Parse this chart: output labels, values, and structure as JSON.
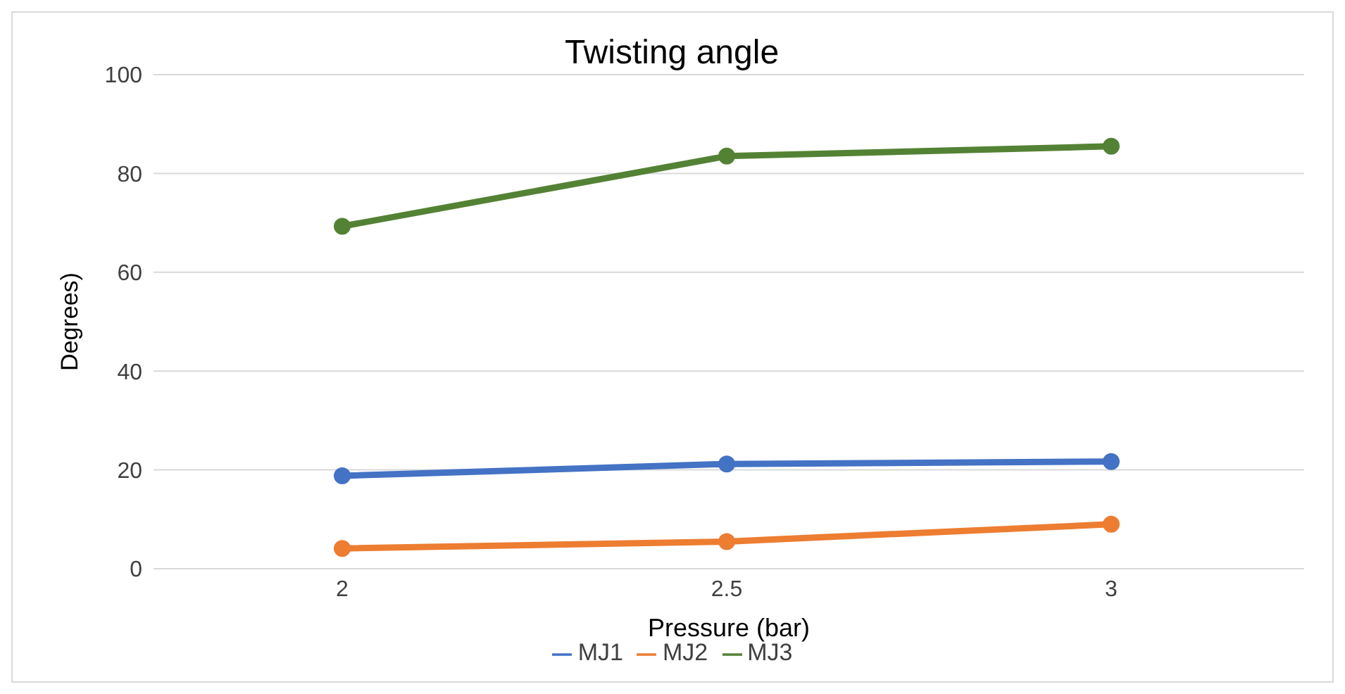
{
  "chart_data": {
    "type": "line",
    "title": "Twisting angle",
    "xlabel": "Pressure (bar)",
    "ylabel": "Degrees)",
    "categories": [
      "2",
      "2.5",
      "3"
    ],
    "series": [
      {
        "name": "MJ1",
        "color": "#4472c4",
        "values": [
          18.8,
          21.2,
          21.7
        ]
      },
      {
        "name": "MJ2",
        "color": "#ed7d31",
        "values": [
          4.1,
          5.5,
          9.0
        ]
      },
      {
        "name": "MJ3",
        "color": "#548235",
        "values": [
          69.3,
          83.5,
          85.5
        ]
      }
    ],
    "ylim": [
      0,
      100
    ],
    "yticks": [
      0,
      20,
      40,
      60,
      80,
      100
    ],
    "grid": "y",
    "legend": "bottom",
    "marker": "circle",
    "line_style": "solid"
  }
}
